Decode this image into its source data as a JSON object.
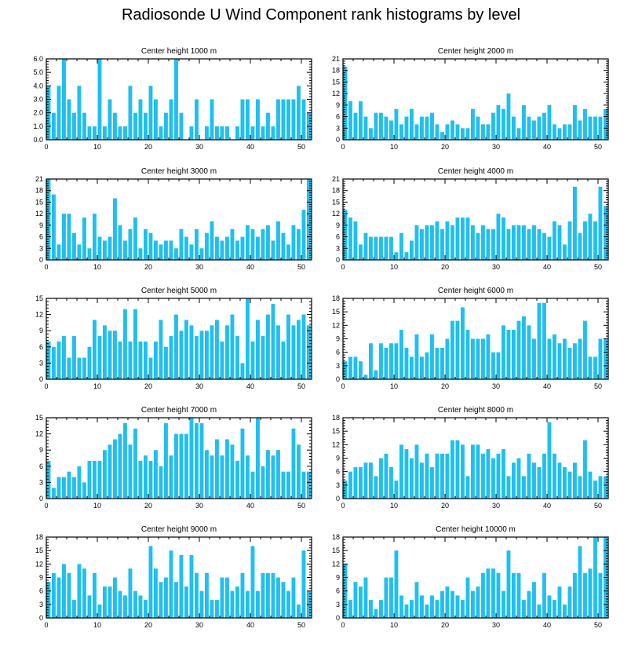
{
  "title": "Radiosonde U Wind Component rank histograms by level",
  "colors": {
    "bar": "#1ec0f0",
    "axis": "#000000",
    "background": "#ffffff"
  },
  "chart_data": [
    {
      "type": "bar",
      "title": "Center height 1000 m",
      "xlim": [
        0,
        52
      ],
      "ylim": [
        0,
        6
      ],
      "xticks": [
        0,
        10,
        20,
        30,
        40,
        50
      ],
      "yticks": [
        0,
        1,
        2,
        3,
        4,
        5,
        6
      ],
      "ytick_labels": [
        "0.0",
        "1.0",
        "2.0",
        "3.0",
        "4.0",
        "5.0",
        "6.0"
      ],
      "values": [
        4,
        2,
        4,
        6,
        3,
        2,
        4,
        2,
        1,
        1,
        6,
        1,
        3,
        2,
        1,
        1,
        4,
        2,
        3,
        2,
        4,
        3,
        1,
        2,
        3,
        6,
        2,
        0,
        1,
        3,
        0,
        1,
        3,
        1,
        1,
        1,
        0,
        1,
        3,
        3,
        1,
        3,
        1,
        2,
        1,
        3,
        3,
        3,
        3,
        4,
        3,
        2
      ]
    },
    {
      "type": "bar",
      "title": "Center height 2000 m",
      "xlim": [
        0,
        52
      ],
      "ylim": [
        0,
        21
      ],
      "xticks": [
        0,
        10,
        20,
        30,
        40,
        50
      ],
      "yticks": [
        0,
        3,
        6,
        9,
        12,
        15,
        18,
        21
      ],
      "ytick_labels": [
        "0",
        "3",
        "6",
        "9",
        "12",
        "15",
        "18",
        "21"
      ],
      "values": [
        19,
        10,
        7,
        10,
        6,
        3,
        7,
        7,
        6,
        5,
        8,
        4,
        6,
        8,
        4,
        6,
        6,
        7,
        4,
        2,
        4,
        5,
        4,
        3,
        3,
        8,
        6,
        4,
        4,
        7,
        9,
        8,
        12,
        6,
        3,
        9,
        6,
        5,
        6,
        7,
        9,
        4,
        3,
        4,
        4,
        9,
        5,
        8,
        6,
        6,
        6,
        8
      ]
    },
    {
      "type": "bar",
      "title": "Center height 3000 m",
      "xlim": [
        0,
        52
      ],
      "ylim": [
        0,
        21
      ],
      "xticks": [
        0,
        10,
        20,
        30,
        40,
        50
      ],
      "yticks": [
        0,
        3,
        6,
        9,
        12,
        15,
        18,
        21
      ],
      "ytick_labels": [
        "0",
        "3",
        "6",
        "9",
        "12",
        "15",
        "18",
        "21"
      ],
      "values": [
        21,
        17,
        4,
        12,
        12,
        7,
        4,
        11,
        3,
        12,
        6,
        5,
        6,
        16,
        9,
        5,
        8,
        11,
        3,
        8,
        7,
        5,
        4,
        5,
        5,
        3,
        8,
        6,
        4,
        8,
        3,
        7,
        10,
        6,
        5,
        6,
        8,
        5,
        6,
        9,
        8,
        6,
        8,
        9,
        5,
        10,
        7,
        4,
        9,
        8,
        13,
        21
      ]
    },
    {
      "type": "bar",
      "title": "Center height 4000 m",
      "xlim": [
        0,
        52
      ],
      "ylim": [
        0,
        21
      ],
      "xticks": [
        0,
        10,
        20,
        30,
        40,
        50
      ],
      "yticks": [
        0,
        3,
        6,
        9,
        12,
        15,
        18,
        21
      ],
      "ytick_labels": [
        "0",
        "3",
        "6",
        "9",
        "12",
        "15",
        "18",
        "21"
      ],
      "values": [
        13,
        11,
        10,
        4,
        7,
        6,
        6,
        6,
        6,
        6,
        2,
        7,
        2,
        5,
        9,
        8,
        9,
        9,
        10,
        8,
        10,
        9,
        11,
        11,
        11,
        9,
        7,
        9,
        8,
        8,
        12,
        11,
        8,
        9,
        9,
        9,
        8,
        9,
        8,
        7,
        6,
        10,
        9,
        4,
        10,
        19,
        7,
        10,
        12,
        10,
        19,
        14
      ]
    },
    {
      "type": "bar",
      "title": "Center height 5000 m",
      "xlim": [
        0,
        52
      ],
      "ylim": [
        0,
        15
      ],
      "xticks": [
        0,
        10,
        20,
        30,
        40,
        50
      ],
      "yticks": [
        0,
        3,
        6,
        9,
        12,
        15
      ],
      "ytick_labels": [
        "0",
        "3",
        "6",
        "9",
        "12",
        "15"
      ],
      "values": [
        7,
        6,
        7,
        8,
        4,
        8,
        4,
        4,
        6,
        11,
        8,
        10,
        9,
        9,
        7,
        13,
        7,
        13,
        7,
        7,
        4,
        7,
        11,
        6,
        8,
        12,
        9,
        11,
        10,
        8,
        9,
        9,
        10,
        11,
        7,
        10,
        12,
        8,
        3,
        15,
        7,
        11,
        8,
        12,
        14,
        10,
        7,
        12,
        10,
        11,
        12,
        10
      ]
    },
    {
      "type": "bar",
      "title": "Center height 6000 m",
      "xlim": [
        0,
        52
      ],
      "ylim": [
        0,
        18
      ],
      "xticks": [
        0,
        10,
        20,
        30,
        40,
        50
      ],
      "yticks": [
        0,
        3,
        6,
        9,
        12,
        15,
        18
      ],
      "ytick_labels": [
        "0",
        "3",
        "6",
        "9",
        "12",
        "15",
        "18"
      ],
      "values": [
        4,
        5,
        5,
        4,
        1,
        8,
        2,
        8,
        7,
        8,
        8,
        11,
        7,
        5,
        10,
        5,
        6,
        10,
        7,
        7,
        9,
        13,
        13,
        16,
        11,
        9,
        9,
        9,
        10,
        6,
        6,
        12,
        11,
        11,
        13,
        14,
        12,
        9,
        17,
        17,
        9,
        10,
        8,
        9,
        7,
        8,
        9,
        13,
        5,
        5,
        9,
        9
      ]
    },
    {
      "type": "bar",
      "title": "Center height 7000 m",
      "xlim": [
        0,
        52
      ],
      "ylim": [
        0,
        15
      ],
      "xticks": [
        0,
        10,
        20,
        30,
        40,
        50
      ],
      "yticks": [
        0,
        3,
        6,
        9,
        12,
        15
      ],
      "ytick_labels": [
        "0",
        "3",
        "6",
        "9",
        "12",
        "15"
      ],
      "values": [
        7,
        2,
        4,
        4,
        5,
        4,
        6,
        3,
        7,
        7,
        7,
        9,
        10,
        11,
        12,
        14,
        10,
        13,
        7,
        8,
        7,
        9,
        6,
        14,
        8,
        12,
        12,
        12,
        15,
        14,
        14,
        9,
        8,
        11,
        8,
        11,
        10,
        7,
        13,
        8,
        5,
        15,
        6,
        9,
        8,
        9,
        5,
        5,
        13,
        10,
        5,
        5
      ]
    },
    {
      "type": "bar",
      "title": "Center height 8000 m",
      "xlim": [
        0,
        52
      ],
      "ylim": [
        0,
        18
      ],
      "xticks": [
        0,
        10,
        20,
        30,
        40,
        50
      ],
      "yticks": [
        0,
        3,
        6,
        9,
        12,
        15,
        18
      ],
      "ytick_labels": [
        "0",
        "3",
        "6",
        "9",
        "12",
        "15",
        "18"
      ],
      "values": [
        4,
        6,
        7,
        7,
        8,
        8,
        5,
        9,
        10,
        7,
        4,
        12,
        11,
        9,
        12,
        8,
        10,
        7,
        10,
        10,
        10,
        13,
        13,
        12,
        5,
        12,
        12,
        10,
        11,
        9,
        10,
        11,
        5,
        8,
        9,
        5,
        10,
        8,
        7,
        10,
        17,
        10,
        8,
        7,
        6,
        8,
        5,
        13,
        6,
        4,
        5,
        5
      ]
    },
    {
      "type": "bar",
      "title": "Center height 9000 m",
      "xlim": [
        0,
        52
      ],
      "ylim": [
        0,
        18
      ],
      "xticks": [
        0,
        10,
        20,
        30,
        40,
        50
      ],
      "yticks": [
        0,
        3,
        6,
        9,
        12,
        15,
        18
      ],
      "ytick_labels": [
        "0",
        "3",
        "6",
        "9",
        "12",
        "15",
        "18"
      ],
      "values": [
        8,
        10,
        9,
        12,
        10,
        4,
        12,
        11,
        5,
        10,
        3,
        7,
        7,
        9,
        6,
        5,
        11,
        6,
        5,
        4,
        16,
        11,
        8,
        9,
        15,
        8,
        14,
        7,
        14,
        10,
        6,
        10,
        4,
        4,
        9,
        9,
        6,
        7,
        10,
        6,
        16,
        6,
        10,
        10,
        10,
        9,
        8,
        6,
        9,
        3,
        15,
        6
      ]
    },
    {
      "type": "bar",
      "title": "Center height 10000 m",
      "xlim": [
        0,
        52
      ],
      "ylim": [
        0,
        18
      ],
      "xticks": [
        0,
        10,
        20,
        30,
        40,
        50
      ],
      "yticks": [
        0,
        3,
        6,
        9,
        12,
        15,
        18
      ],
      "ytick_labels": [
        "0",
        "3",
        "6",
        "9",
        "12",
        "15",
        "18"
      ],
      "values": [
        12,
        4,
        8,
        7,
        9,
        4,
        2,
        4,
        9,
        9,
        15,
        5,
        3,
        4,
        8,
        5,
        3,
        5,
        4,
        6,
        7,
        6,
        5,
        4,
        9,
        6,
        7,
        10,
        11,
        11,
        10,
        6,
        15,
        10,
        10,
        4,
        6,
        8,
        3,
        10,
        5,
        4,
        7,
        3,
        7,
        10,
        16,
        10,
        11,
        18,
        10,
        18
      ]
    }
  ]
}
